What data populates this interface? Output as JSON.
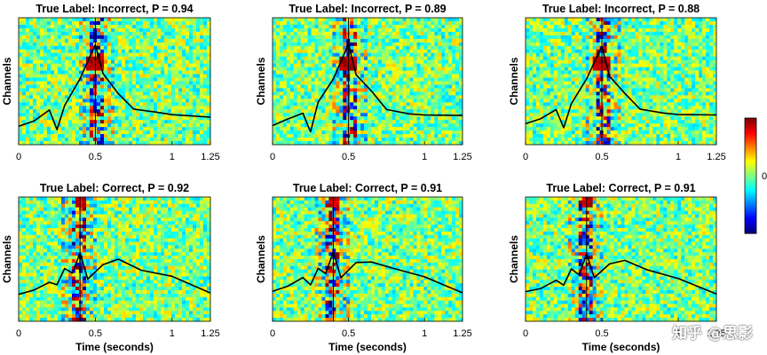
{
  "chart_data": [
    {
      "type": "heatmap",
      "title": "True Label: Incorrect, P = 0.94",
      "xlabel": "",
      "ylabel": "Channels",
      "xlim": [
        0,
        1.25
      ],
      "xticks": [
        "0",
        "0.5",
        "1",
        "1.25"
      ],
      "event_time": 0.5,
      "peak_time": 0.5,
      "peak_amplitude": 0.85,
      "trace": [
        [
          0,
          0.15
        ],
        [
          0.1,
          0.2
        ],
        [
          0.2,
          0.3
        ],
        [
          0.25,
          0.12
        ],
        [
          0.3,
          0.35
        ],
        [
          0.4,
          0.55
        ],
        [
          0.5,
          0.85
        ],
        [
          0.55,
          0.6
        ],
        [
          0.65,
          0.45
        ],
        [
          0.75,
          0.32
        ],
        [
          0.9,
          0.28
        ],
        [
          1.0,
          0.27
        ],
        [
          1.25,
          0.25
        ]
      ]
    },
    {
      "type": "heatmap",
      "title": "True Label: Incorrect, P = 0.89",
      "xlabel": "",
      "ylabel": "Channels",
      "xlim": [
        0,
        1.25
      ],
      "xticks": [
        "0",
        "0.5",
        "1",
        "1.25"
      ],
      "event_time": 0.5,
      "peak_time": 0.5,
      "peak_amplitude": 0.85,
      "trace": [
        [
          0,
          0.15
        ],
        [
          0.1,
          0.22
        ],
        [
          0.2,
          0.28
        ],
        [
          0.25,
          0.12
        ],
        [
          0.3,
          0.35
        ],
        [
          0.4,
          0.55
        ],
        [
          0.5,
          0.85
        ],
        [
          0.55,
          0.6
        ],
        [
          0.65,
          0.45
        ],
        [
          0.75,
          0.3
        ],
        [
          0.9,
          0.27
        ],
        [
          1.0,
          0.26
        ],
        [
          1.25,
          0.25
        ]
      ]
    },
    {
      "type": "heatmap",
      "title": "True Label: Incorrect, P = 0.88",
      "xlabel": "",
      "ylabel": "Channels",
      "xlim": [
        0,
        1.25
      ],
      "xticks": [
        "0",
        "0.5",
        "1",
        "1.25"
      ],
      "event_time": 0.5,
      "peak_time": 0.5,
      "peak_amplitude": 0.85,
      "trace": [
        [
          0,
          0.18
        ],
        [
          0.1,
          0.22
        ],
        [
          0.2,
          0.3
        ],
        [
          0.25,
          0.15
        ],
        [
          0.3,
          0.35
        ],
        [
          0.4,
          0.55
        ],
        [
          0.5,
          0.85
        ],
        [
          0.55,
          0.6
        ],
        [
          0.65,
          0.45
        ],
        [
          0.75,
          0.3
        ],
        [
          0.9,
          0.27
        ],
        [
          1.0,
          0.26
        ],
        [
          1.25,
          0.24
        ]
      ]
    },
    {
      "type": "heatmap",
      "title": "True Label: Correct, P = 0.92",
      "xlabel": "Time (seconds)",
      "ylabel": "Channels",
      "xlim": [
        0,
        1.25
      ],
      "xticks": [
        "0",
        "0.5",
        "1",
        "1.25"
      ],
      "event_time": 0.4,
      "peak_time": 0.4,
      "peak_amplitude": 0.6,
      "trace": [
        [
          0,
          0.25
        ],
        [
          0.1,
          0.28
        ],
        [
          0.2,
          0.35
        ],
        [
          0.25,
          0.32
        ],
        [
          0.3,
          0.45
        ],
        [
          0.35,
          0.42
        ],
        [
          0.4,
          0.6
        ],
        [
          0.45,
          0.38
        ],
        [
          0.55,
          0.5
        ],
        [
          0.65,
          0.55
        ],
        [
          0.8,
          0.45
        ],
        [
          1.0,
          0.38
        ],
        [
          1.25,
          0.25
        ]
      ]
    },
    {
      "type": "heatmap",
      "title": "True Label: Correct, P = 0.91",
      "xlabel": "Time (seconds)",
      "ylabel": "Channels",
      "xlim": [
        0,
        1.25
      ],
      "xticks": [
        "0",
        "0.5",
        "1",
        "1.25"
      ],
      "event_time": 0.4,
      "peak_time": 0.4,
      "peak_amplitude": 0.6,
      "trace": [
        [
          0,
          0.25
        ],
        [
          0.1,
          0.3
        ],
        [
          0.2,
          0.38
        ],
        [
          0.25,
          0.33
        ],
        [
          0.3,
          0.45
        ],
        [
          0.35,
          0.42
        ],
        [
          0.4,
          0.6
        ],
        [
          0.45,
          0.38
        ],
        [
          0.55,
          0.5
        ],
        [
          0.65,
          0.52
        ],
        [
          0.8,
          0.45
        ],
        [
          1.0,
          0.38
        ],
        [
          1.25,
          0.25
        ]
      ]
    },
    {
      "type": "heatmap",
      "title": "True Label: Correct, P = 0.91",
      "xlabel": "Time (seconds)",
      "ylabel": "Channels",
      "xlim": [
        0,
        1.25
      ],
      "xticks": [
        "0",
        "0.5",
        "1",
        "1.25"
      ],
      "event_time": 0.4,
      "peak_time": 0.4,
      "peak_amplitude": 0.6,
      "trace": [
        [
          0,
          0.25
        ],
        [
          0.1,
          0.28
        ],
        [
          0.2,
          0.36
        ],
        [
          0.25,
          0.32
        ],
        [
          0.3,
          0.45
        ],
        [
          0.35,
          0.42
        ],
        [
          0.4,
          0.6
        ],
        [
          0.45,
          0.38
        ],
        [
          0.55,
          0.5
        ],
        [
          0.65,
          0.53
        ],
        [
          0.8,
          0.45
        ],
        [
          1.0,
          0.38
        ],
        [
          1.25,
          0.25
        ]
      ]
    }
  ],
  "colorbar": {
    "tick_label": "0",
    "colormap": "jet",
    "range": [
      -1,
      1
    ]
  },
  "watermark": "知乎 @思影"
}
